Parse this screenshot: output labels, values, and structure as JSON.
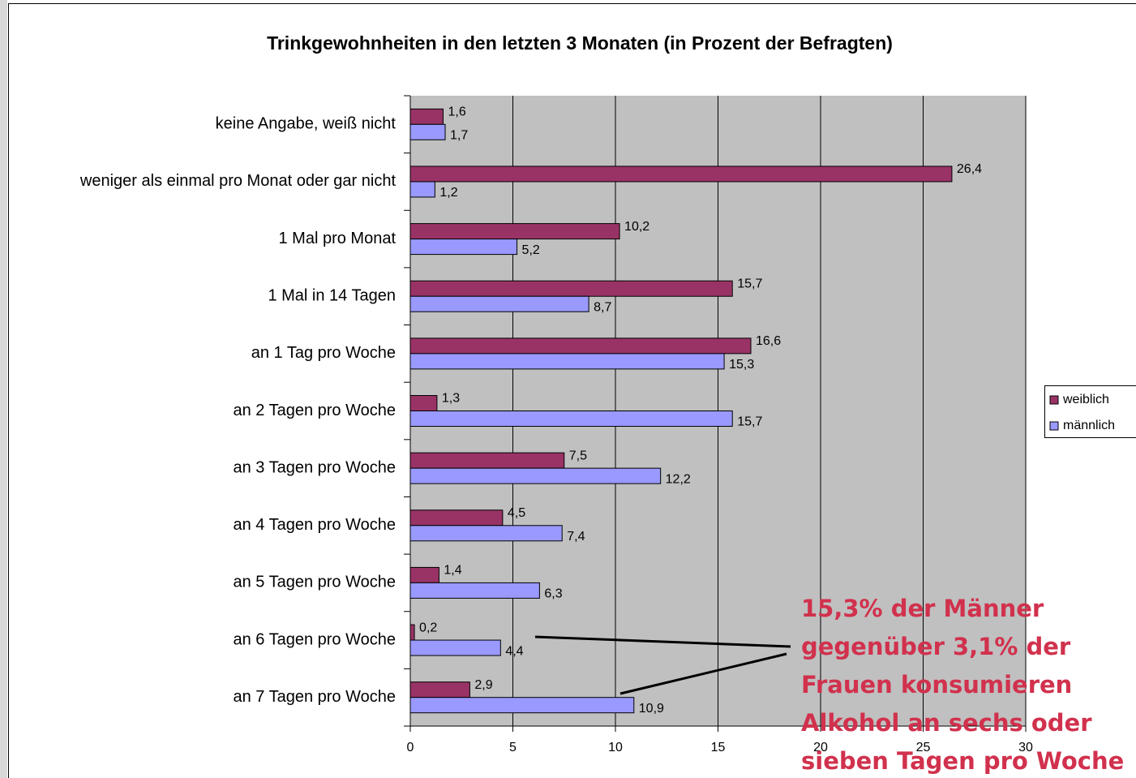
{
  "chart_data": {
    "type": "bar",
    "orientation": "horizontal",
    "title": "Trinkgewohnheiten in den letzten 3 Monaten (in Prozent der Befragten)",
    "categories": [
      "keine Angabe, weiß nicht",
      "weniger als einmal pro Monat oder gar nicht",
      "1 Mal pro Monat",
      "1 Mal in 14 Tagen",
      "an 1 Tag pro Woche",
      "an 2 Tagen pro Woche",
      "an 3 Tagen pro Woche",
      "an 4 Tagen pro Woche",
      "an 5 Tagen pro Woche",
      "an 6 Tagen pro Woche",
      "an 7 Tagen pro Woche"
    ],
    "series": [
      {
        "name": "weiblich",
        "color": "#993366",
        "values": [
          1.6,
          26.4,
          10.2,
          15.7,
          16.6,
          1.3,
          7.5,
          4.5,
          1.4,
          0.2,
          2.9
        ],
        "value_labels": [
          "1,6",
          "26,4",
          "10,2",
          "15,7",
          "16,6",
          "1,3",
          "7,5",
          "4,5",
          "1,4",
          "0,2",
          "2,9"
        ]
      },
      {
        "name": "männlich",
        "color": "#9999ff",
        "values": [
          1.7,
          1.2,
          5.2,
          8.7,
          15.3,
          15.7,
          12.2,
          7.4,
          6.3,
          4.4,
          10.9
        ],
        "value_labels": [
          "1,7",
          "1,2",
          "5,2",
          "8,7",
          "15,3",
          "15,7",
          "12,2",
          "7,4",
          "6,3",
          "4,4",
          "10,9"
        ]
      }
    ],
    "xlim": [
      0,
      30
    ],
    "xticks": [
      0,
      5,
      10,
      15,
      20,
      25,
      30
    ],
    "grid": true,
    "legend": "right",
    "annotation": [
      "15,3% der Männer",
      "gegenüber 3,1% der",
      "Frauen konsumieren",
      "Alkohol an sechs oder",
      "sieben Tagen pro Woche"
    ]
  }
}
